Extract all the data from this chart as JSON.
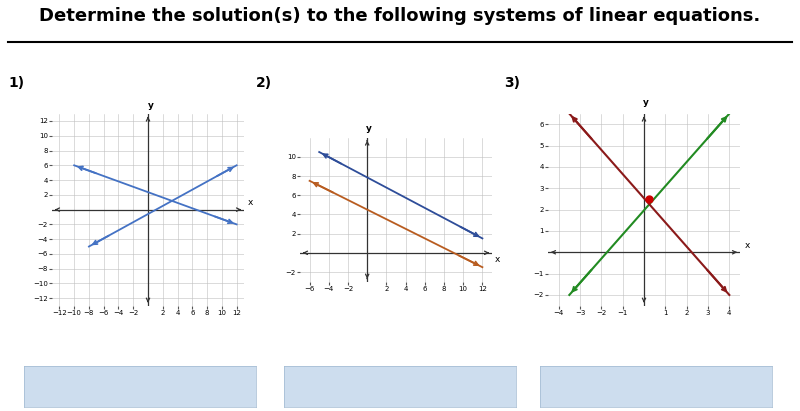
{
  "title": "Determine the solution(s) to the following systems of linear equations.",
  "title_fontsize": 13,
  "title_fontweight": "bold",
  "background_color": "#ffffff",
  "answer_box_color": "#c5d8ec",
  "graph1": {
    "label": "1)",
    "xlim": [
      -13,
      13
    ],
    "ylim": [
      -13,
      13
    ],
    "xticks": [
      -12,
      -10,
      -8,
      -6,
      -4,
      -2,
      2,
      4,
      6,
      8,
      10,
      12
    ],
    "yticks": [
      -12,
      -10,
      -8,
      -6,
      -4,
      -2,
      2,
      4,
      6,
      8,
      10,
      12
    ],
    "line1_color": "#4472c4",
    "line1_x": [
      -10,
      12
    ],
    "line1_y": [
      6,
      -2
    ],
    "line2_color": "#4472c4",
    "line2_x": [
      -8,
      12
    ],
    "line2_y": [
      -5,
      6
    ]
  },
  "graph2": {
    "label": "2)",
    "xlim": [
      -7,
      13
    ],
    "ylim": [
      -3,
      12
    ],
    "xticks": [
      -6,
      -4,
      -2,
      2,
      4,
      6,
      8,
      10,
      12
    ],
    "yticks": [
      -2,
      2,
      4,
      6,
      8,
      10
    ],
    "line1_color": "#2e4d99",
    "line1_x": [
      -5,
      12
    ],
    "line1_y": [
      10.5,
      1.5
    ],
    "line2_color": "#b85c20",
    "line2_x": [
      -6,
      12
    ],
    "line2_y": [
      7.5,
      -1.5
    ]
  },
  "graph3": {
    "label": "3)",
    "xlim": [
      -4.5,
      4.5
    ],
    "ylim": [
      -2.5,
      6.5
    ],
    "xticks": [
      -4,
      -3,
      -2,
      -1,
      1,
      2,
      3,
      4
    ],
    "yticks": [
      -2,
      -1,
      1,
      2,
      3,
      4,
      5,
      6
    ],
    "line1_color": "#228B22",
    "line1_x": [
      -3.5,
      4.0
    ],
    "line1_y": [
      -2.0,
      6.5
    ],
    "line2_color": "#8B1A1A",
    "line2_x": [
      -3.5,
      4.0
    ],
    "line2_y": [
      6.5,
      -2.0
    ],
    "intersection_x": 0.25,
    "intersection_y": 2.5,
    "intersection_color": "#cc0000"
  }
}
